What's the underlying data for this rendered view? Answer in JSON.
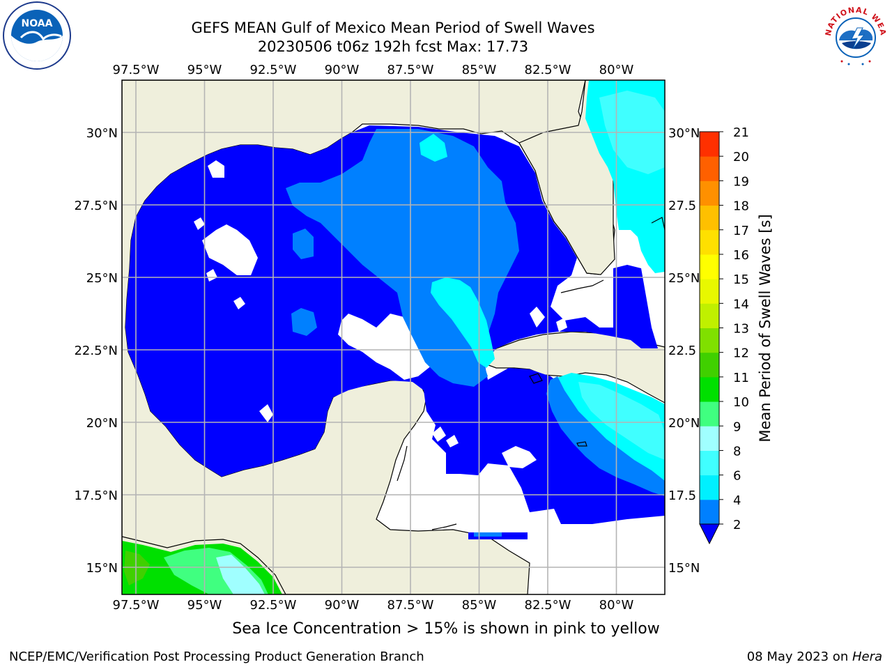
{
  "title": {
    "line1": "GEFS MEAN Gulf of Mexico Mean Period of Swell Waves",
    "line2": "20230506 t06z 192h fcst   Max: 17.73"
  },
  "axes": {
    "lon_labels": [
      "97.5°W",
      "95°W",
      "92.5°W",
      "90°W",
      "87.5°W",
      "85°W",
      "82.5°W",
      "80°W"
    ],
    "lat_labels_left": [
      "30°N",
      "27.5°N",
      "25°N",
      "22.5°N",
      "20°N",
      "17.5°N",
      "15°N"
    ],
    "lat_labels_right": [
      "30°N",
      "27.5",
      "25°N",
      "22.5",
      "20°N",
      "17.5",
      "15°N"
    ]
  },
  "colorbar": {
    "label": "Mean Period of Swell Waves [s]",
    "ticks": [
      "2",
      "4",
      "6",
      "8",
      "9",
      "10",
      "11",
      "12",
      "13",
      "14",
      "15",
      "16",
      "17",
      "18",
      "19",
      "20",
      "21"
    ],
    "colors": [
      "#0080ff",
      "#00f0ff",
      "#40ffff",
      "#a0ffff",
      "#40ff80",
      "#00e000",
      "#40d000",
      "#80e000",
      "#c0f000",
      "#e8f800",
      "#ffff00",
      "#ffe000",
      "#ffc000",
      "#ff9000",
      "#ff6000",
      "#ff3000"
    ],
    "under_color": "#0000ff"
  },
  "colors": {
    "land": "#efefdc",
    "period_2_4": "#0000ff",
    "period_4_6": "#0080ff",
    "period_6_8": "#00ffff",
    "period_8_9": "#40ffff"
  },
  "logos": {
    "noaa": "NOAA",
    "nws": "NATIONAL WEATHER SERVICE"
  },
  "ice_note": "Sea Ice Concentration > 15% is shown in pink to yellow",
  "footer": {
    "left": "NCEP/EMC/Verification Post Processing Product Generation Branch",
    "right_date": "08 May 2023 on ",
    "right_host": "Hera"
  }
}
